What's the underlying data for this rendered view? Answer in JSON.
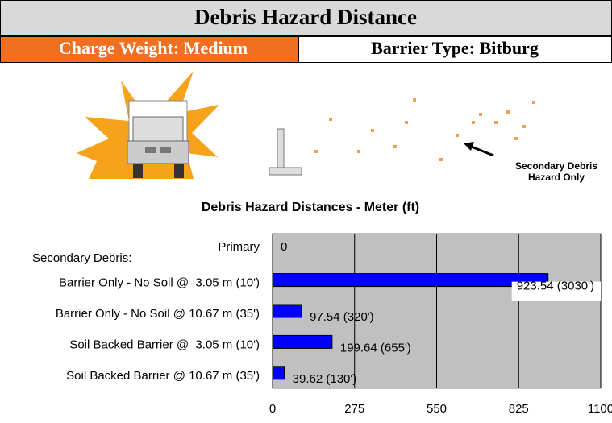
{
  "header": {
    "title": "Debris Hazard Distance",
    "charge_weight": "Charge Weight: Medium",
    "barrier_type": "Barrier Type: Bitburg"
  },
  "illustration": {
    "label_lines": [
      "Secondary Debris",
      "Hazard Only"
    ]
  },
  "chart_data": {
    "type": "barh",
    "title": "Debris Hazard Distances - Meter (ft)",
    "group_label": "Secondary Debris:",
    "categories": [
      "Primary",
      "Barrier Only - No Soil @  3.05 m (10')",
      "Barrier Only - No Soil @ 10.67 m (35')",
      "Soil Backed Barrier @  3.05 m (10')",
      "Soil Backed Barrier @ 10.67 m (35')"
    ],
    "values": [
      0,
      923.54,
      97.54,
      199.64,
      39.62
    ],
    "value_labels": [
      "0",
      "923.54 (3030')",
      "97.54 (320')",
      "199.64 (655')",
      "39.62 (130')"
    ],
    "color": "#0000ff",
    "xlim": [
      0,
      1100
    ],
    "xticks": [
      0,
      275,
      550,
      825,
      1100
    ],
    "grid": true
  }
}
